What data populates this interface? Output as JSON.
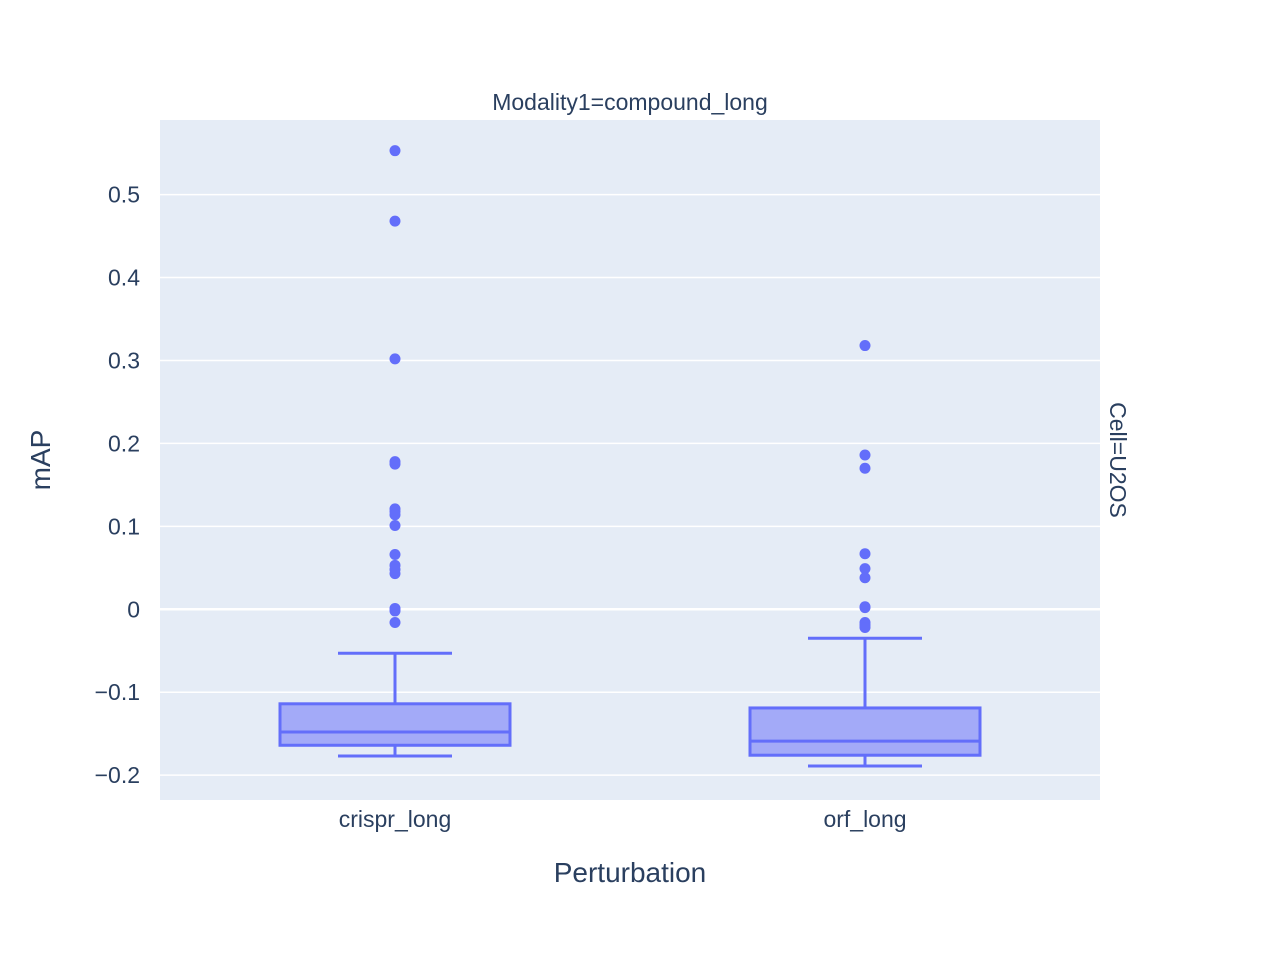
{
  "chart_data": {
    "type": "box",
    "facet_top": "Modality1=compound_long",
    "facet_right": "Cell=U2OS",
    "xlabel": "Perturbation",
    "ylabel": "mAP",
    "ylim": [
      -0.23,
      0.59
    ],
    "yticks": [
      -0.2,
      -0.1,
      0,
      0.1,
      0.2,
      0.3,
      0.4,
      0.5
    ],
    "ytick_labels": [
      "−0.2",
      "−0.1",
      "0",
      "0.1",
      "0.2",
      "0.3",
      "0.4",
      "0.5"
    ],
    "categories": [
      "crispr_long",
      "orf_long"
    ],
    "grid": true,
    "colors": {
      "box_line": "#636efa",
      "box_fill": "#a3aaf8",
      "plot_bg": "#e5ecf6",
      "grid": "#ffffff",
      "text": "#2a3f5f"
    },
    "boxes": [
      {
        "category": "crispr_long",
        "whisker_low": -0.177,
        "q1": -0.164,
        "median": -0.148,
        "q3": -0.114,
        "whisker_high": -0.053,
        "outliers": [
          0.553,
          0.468,
          0.302,
          0.178,
          0.175,
          0.121,
          0.118,
          0.114,
          0.101,
          0.066,
          0.053,
          0.048,
          0.043,
          0.001,
          -0.002,
          -0.016
        ]
      },
      {
        "category": "orf_long",
        "whisker_low": -0.189,
        "q1": -0.176,
        "median": -0.159,
        "q3": -0.119,
        "whisker_high": -0.035,
        "outliers": [
          0.318,
          0.186,
          0.17,
          0.067,
          0.049,
          0.038,
          0.003,
          0.002,
          -0.016,
          -0.019,
          -0.022
        ]
      }
    ]
  }
}
